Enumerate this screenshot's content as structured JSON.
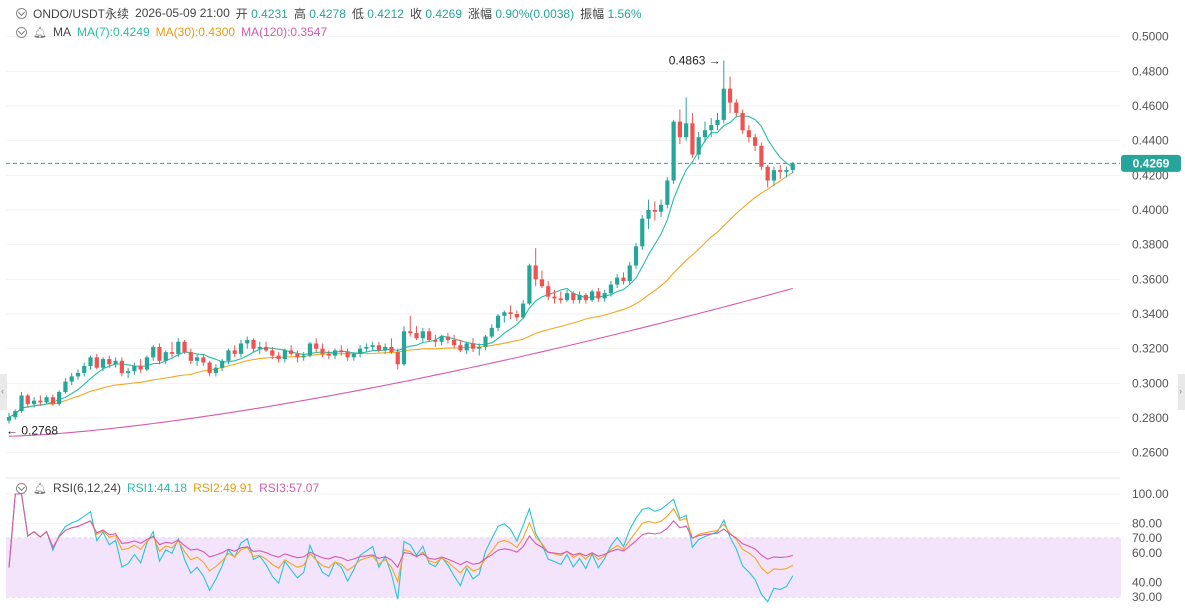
{
  "header": {
    "symbol": "ONDO/USDT永续",
    "datetime": "2026-05-09 21:00",
    "open_label": "开",
    "open_value": "0.4231",
    "high_label": "高",
    "high_value": "0.4278",
    "low_label": "低",
    "low_value": "0.4212",
    "close_label": "收",
    "close_value": "0.4269",
    "change_label": "涨幅",
    "change_value": "0.90%(0.0038)",
    "amplitude_label": "振幅",
    "amplitude_value": "1.56%"
  },
  "ma_legend": {
    "label": "MA",
    "ma7": "MA(7):0.4249",
    "ma30": "MA(30):0.4300",
    "ma120": "MA(120):0.3547"
  },
  "rsi_legend": {
    "label": "RSI(6,12,24)",
    "rsi1": "RSI1:44.18",
    "rsi2": "RSI2:49.91",
    "rsi3": "RSI3:57.07"
  },
  "colors": {
    "up": "#26a69a",
    "down": "#ef5350",
    "ma7": "#26bfa5",
    "ma30": "#f5a623",
    "ma120": "#d65ab0",
    "rsi1": "#26c6da",
    "rsi2": "#f5a623",
    "rsi3": "#d65ab0",
    "rsi_band": "#f3e3fb",
    "text_gray": "#444444"
  },
  "price_axis_labels": [
    "0.5000",
    "0.4800",
    "0.4600",
    "0.4400",
    "0.4200",
    "0.4000",
    "0.3800",
    "0.3600",
    "0.3400",
    "0.3200",
    "0.3000",
    "0.2800",
    "0.2600"
  ],
  "rsi_axis_labels": [
    "100.00",
    "80.00",
    "70.00",
    "60.00",
    "40.00",
    "30.00"
  ],
  "current_price_tag": "0.4269",
  "annotations": {
    "high": "0.4863 →",
    "low": "← 0.2768"
  },
  "chart_data": {
    "type": "candlestick",
    "price_range": [
      0.25,
      0.505
    ],
    "rsi_range": [
      30,
      100
    ],
    "rsi_band": [
      30,
      70
    ],
    "current_price": 0.4269,
    "highest": 0.4863,
    "lowest": 0.2768,
    "candles": [
      [
        0.2785,
        0.283,
        0.2768,
        0.2805
      ],
      [
        0.2805,
        0.285,
        0.279,
        0.284
      ],
      [
        0.284,
        0.295,
        0.283,
        0.293
      ],
      [
        0.293,
        0.294,
        0.286,
        0.288
      ],
      [
        0.288,
        0.292,
        0.286,
        0.29
      ],
      [
        0.29,
        0.293,
        0.287,
        0.289
      ],
      [
        0.289,
        0.293,
        0.288,
        0.292
      ],
      [
        0.292,
        0.2935,
        0.287,
        0.288
      ],
      [
        0.288,
        0.296,
        0.287,
        0.295
      ],
      [
        0.295,
        0.303,
        0.294,
        0.301
      ],
      [
        0.301,
        0.306,
        0.299,
        0.304
      ],
      [
        0.304,
        0.308,
        0.302,
        0.306
      ],
      [
        0.306,
        0.312,
        0.304,
        0.31
      ],
      [
        0.31,
        0.316,
        0.308,
        0.315
      ],
      [
        0.315,
        0.317,
        0.308,
        0.309
      ],
      [
        0.309,
        0.315,
        0.307,
        0.314
      ],
      [
        0.314,
        0.316,
        0.309,
        0.311
      ],
      [
        0.311,
        0.315,
        0.309,
        0.313
      ],
      [
        0.313,
        0.315,
        0.304,
        0.306
      ],
      [
        0.306,
        0.309,
        0.303,
        0.307
      ],
      [
        0.307,
        0.312,
        0.305,
        0.31
      ],
      [
        0.31,
        0.314,
        0.306,
        0.308
      ],
      [
        0.308,
        0.316,
        0.307,
        0.315
      ],
      [
        0.315,
        0.322,
        0.313,
        0.321
      ],
      [
        0.321,
        0.323,
        0.311,
        0.313
      ],
      [
        0.313,
        0.319,
        0.311,
        0.318
      ],
      [
        0.318,
        0.324,
        0.315,
        0.317
      ],
      [
        0.317,
        0.326,
        0.315,
        0.324
      ],
      [
        0.324,
        0.325,
        0.317,
        0.318
      ],
      [
        0.318,
        0.32,
        0.311,
        0.313
      ],
      [
        0.313,
        0.317,
        0.31,
        0.315
      ],
      [
        0.315,
        0.317,
        0.31,
        0.312
      ],
      [
        0.312,
        0.313,
        0.304,
        0.306
      ],
      [
        0.306,
        0.311,
        0.304,
        0.309
      ],
      [
        0.309,
        0.314,
        0.307,
        0.313
      ],
      [
        0.313,
        0.32,
        0.311,
        0.319
      ],
      [
        0.319,
        0.322,
        0.315,
        0.317
      ],
      [
        0.317,
        0.325,
        0.315,
        0.323
      ],
      [
        0.323,
        0.327,
        0.32,
        0.325
      ],
      [
        0.325,
        0.326,
        0.318,
        0.32
      ],
      [
        0.32,
        0.324,
        0.317,
        0.321
      ],
      [
        0.321,
        0.324,
        0.318,
        0.319
      ],
      [
        0.319,
        0.321,
        0.314,
        0.316
      ],
      [
        0.316,
        0.318,
        0.312,
        0.314
      ],
      [
        0.314,
        0.32,
        0.312,
        0.319
      ],
      [
        0.319,
        0.322,
        0.316,
        0.317
      ],
      [
        0.317,
        0.319,
        0.312,
        0.315
      ],
      [
        0.315,
        0.318,
        0.313,
        0.316
      ],
      [
        0.316,
        0.324,
        0.315,
        0.323
      ],
      [
        0.323,
        0.326,
        0.318,
        0.32
      ],
      [
        0.32,
        0.323,
        0.315,
        0.317
      ],
      [
        0.317,
        0.319,
        0.314,
        0.316
      ],
      [
        0.316,
        0.32,
        0.314,
        0.319
      ],
      [
        0.319,
        0.322,
        0.316,
        0.318
      ],
      [
        0.318,
        0.32,
        0.313,
        0.315
      ],
      [
        0.315,
        0.318,
        0.313,
        0.317
      ],
      [
        0.317,
        0.322,
        0.315,
        0.32
      ],
      [
        0.32,
        0.323,
        0.318,
        0.321
      ],
      [
        0.321,
        0.324,
        0.319,
        0.322
      ],
      [
        0.322,
        0.324,
        0.318,
        0.319
      ],
      [
        0.319,
        0.323,
        0.317,
        0.321
      ],
      [
        0.321,
        0.326,
        0.317,
        0.318
      ],
      [
        0.318,
        0.32,
        0.308,
        0.311
      ],
      [
        0.311,
        0.333,
        0.31,
        0.33
      ],
      [
        0.33,
        0.339,
        0.327,
        0.329
      ],
      [
        0.329,
        0.333,
        0.325,
        0.326
      ],
      [
        0.326,
        0.332,
        0.324,
        0.33
      ],
      [
        0.33,
        0.332,
        0.324,
        0.325
      ],
      [
        0.325,
        0.328,
        0.321,
        0.324
      ],
      [
        0.324,
        0.328,
        0.322,
        0.327
      ],
      [
        0.327,
        0.329,
        0.323,
        0.325
      ],
      [
        0.325,
        0.328,
        0.32,
        0.322
      ],
      [
        0.322,
        0.325,
        0.318,
        0.319
      ],
      [
        0.319,
        0.324,
        0.317,
        0.323
      ],
      [
        0.323,
        0.326,
        0.318,
        0.32
      ],
      [
        0.32,
        0.323,
        0.316,
        0.321
      ],
      [
        0.321,
        0.328,
        0.319,
        0.327
      ],
      [
        0.327,
        0.334,
        0.326,
        0.332
      ],
      [
        0.332,
        0.34,
        0.33,
        0.339
      ],
      [
        0.339,
        0.342,
        0.335,
        0.341
      ],
      [
        0.341,
        0.345,
        0.337,
        0.34
      ],
      [
        0.34,
        0.342,
        0.336,
        0.338
      ],
      [
        0.338,
        0.348,
        0.337,
        0.346
      ],
      [
        0.346,
        0.369,
        0.345,
        0.368
      ],
      [
        0.368,
        0.378,
        0.356,
        0.36
      ],
      [
        0.36,
        0.365,
        0.355,
        0.356
      ],
      [
        0.356,
        0.359,
        0.348,
        0.35
      ],
      [
        0.35,
        0.354,
        0.346,
        0.349
      ],
      [
        0.349,
        0.353,
        0.346,
        0.348
      ],
      [
        0.348,
        0.354,
        0.347,
        0.352
      ],
      [
        0.352,
        0.353,
        0.346,
        0.348
      ],
      [
        0.348,
        0.353,
        0.346,
        0.351
      ],
      [
        0.351,
        0.352,
        0.346,
        0.348
      ],
      [
        0.348,
        0.354,
        0.347,
        0.353
      ],
      [
        0.353,
        0.355,
        0.347,
        0.349
      ],
      [
        0.349,
        0.354,
        0.347,
        0.352
      ],
      [
        0.352,
        0.359,
        0.35,
        0.357
      ],
      [
        0.357,
        0.363,
        0.355,
        0.361
      ],
      [
        0.361,
        0.364,
        0.357,
        0.359
      ],
      [
        0.359,
        0.37,
        0.357,
        0.368
      ],
      [
        0.368,
        0.381,
        0.366,
        0.379
      ],
      [
        0.379,
        0.397,
        0.377,
        0.395
      ],
      [
        0.395,
        0.406,
        0.389,
        0.4
      ],
      [
        0.4,
        0.405,
        0.394,
        0.399
      ],
      [
        0.399,
        0.406,
        0.396,
        0.403
      ],
      [
        0.403,
        0.419,
        0.401,
        0.417
      ],
      [
        0.417,
        0.452,
        0.415,
        0.451
      ],
      [
        0.451,
        0.458,
        0.438,
        0.442
      ],
      [
        0.442,
        0.465,
        0.44,
        0.45
      ],
      [
        0.45,
        0.456,
        0.43,
        0.432
      ],
      [
        0.432,
        0.445,
        0.429,
        0.442
      ],
      [
        0.442,
        0.451,
        0.439,
        0.446
      ],
      [
        0.446,
        0.453,
        0.442,
        0.449
      ],
      [
        0.449,
        0.456,
        0.446,
        0.452
      ],
      [
        0.452,
        0.4863,
        0.45,
        0.47
      ],
      [
        0.47,
        0.477,
        0.456,
        0.462
      ],
      [
        0.462,
        0.464,
        0.454,
        0.456
      ],
      [
        0.456,
        0.458,
        0.444,
        0.446
      ],
      [
        0.446,
        0.449,
        0.439,
        0.442
      ],
      [
        0.442,
        0.444,
        0.434,
        0.437
      ],
      [
        0.437,
        0.439,
        0.423,
        0.425
      ],
      [
        0.425,
        0.426,
        0.413,
        0.417
      ],
      [
        0.417,
        0.425,
        0.414,
        0.423
      ],
      [
        0.423,
        0.426,
        0.418,
        0.422
      ],
      [
        0.422,
        0.425,
        0.419,
        0.4231
      ],
      [
        0.4231,
        0.4278,
        0.4212,
        0.4269
      ]
    ]
  }
}
